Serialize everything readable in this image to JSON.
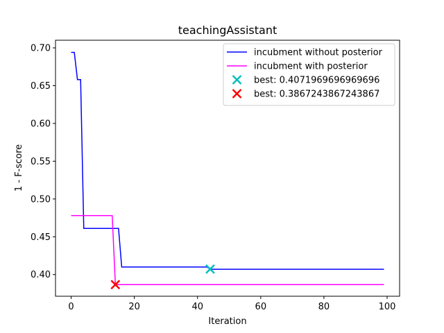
{
  "chart_data": {
    "type": "line",
    "title": "teachingAssistant",
    "xlabel": "Iteration",
    "ylabel": "1 - F-score",
    "xlim": [
      -4.95,
      103.95
    ],
    "ylim": [
      0.3713,
      0.7101
    ],
    "xticks": [
      0,
      20,
      40,
      60,
      80,
      100
    ],
    "yticks": [
      0.4,
      0.45,
      0.5,
      0.55,
      0.6,
      0.65,
      0.7
    ],
    "xtick_labels": [
      "0",
      "20",
      "40",
      "60",
      "80",
      "100"
    ],
    "ytick_labels": [
      "0.40",
      "0.45",
      "0.50",
      "0.55",
      "0.60",
      "0.65",
      "0.70"
    ],
    "grid": false,
    "legend_position": "top-right",
    "series": [
      {
        "name": "incubment without posterior",
        "color": "#0000ff",
        "style": "line",
        "x": [
          0,
          1,
          2,
          3,
          4,
          14,
          15,
          16,
          43,
          44,
          99
        ],
        "y": [
          0.694,
          0.694,
          0.658,
          0.658,
          0.461,
          0.461,
          0.461,
          0.41,
          0.41,
          0.407,
          0.407
        ]
      },
      {
        "name": "incubment with posterior",
        "color": "#ff00ff",
        "style": "line",
        "x": [
          0,
          13,
          14,
          99
        ],
        "y": [
          0.478,
          0.478,
          0.3867,
          0.3867
        ]
      },
      {
        "name": "best: 0.4071969696969696",
        "color": "#00bfbf",
        "style": "marker-x",
        "x": [
          44
        ],
        "y": [
          0.4072
        ]
      },
      {
        "name": "best: 0.3867243867243867",
        "color": "#ff0000",
        "style": "marker-x",
        "x": [
          14
        ],
        "y": [
          0.3867
        ]
      }
    ]
  }
}
